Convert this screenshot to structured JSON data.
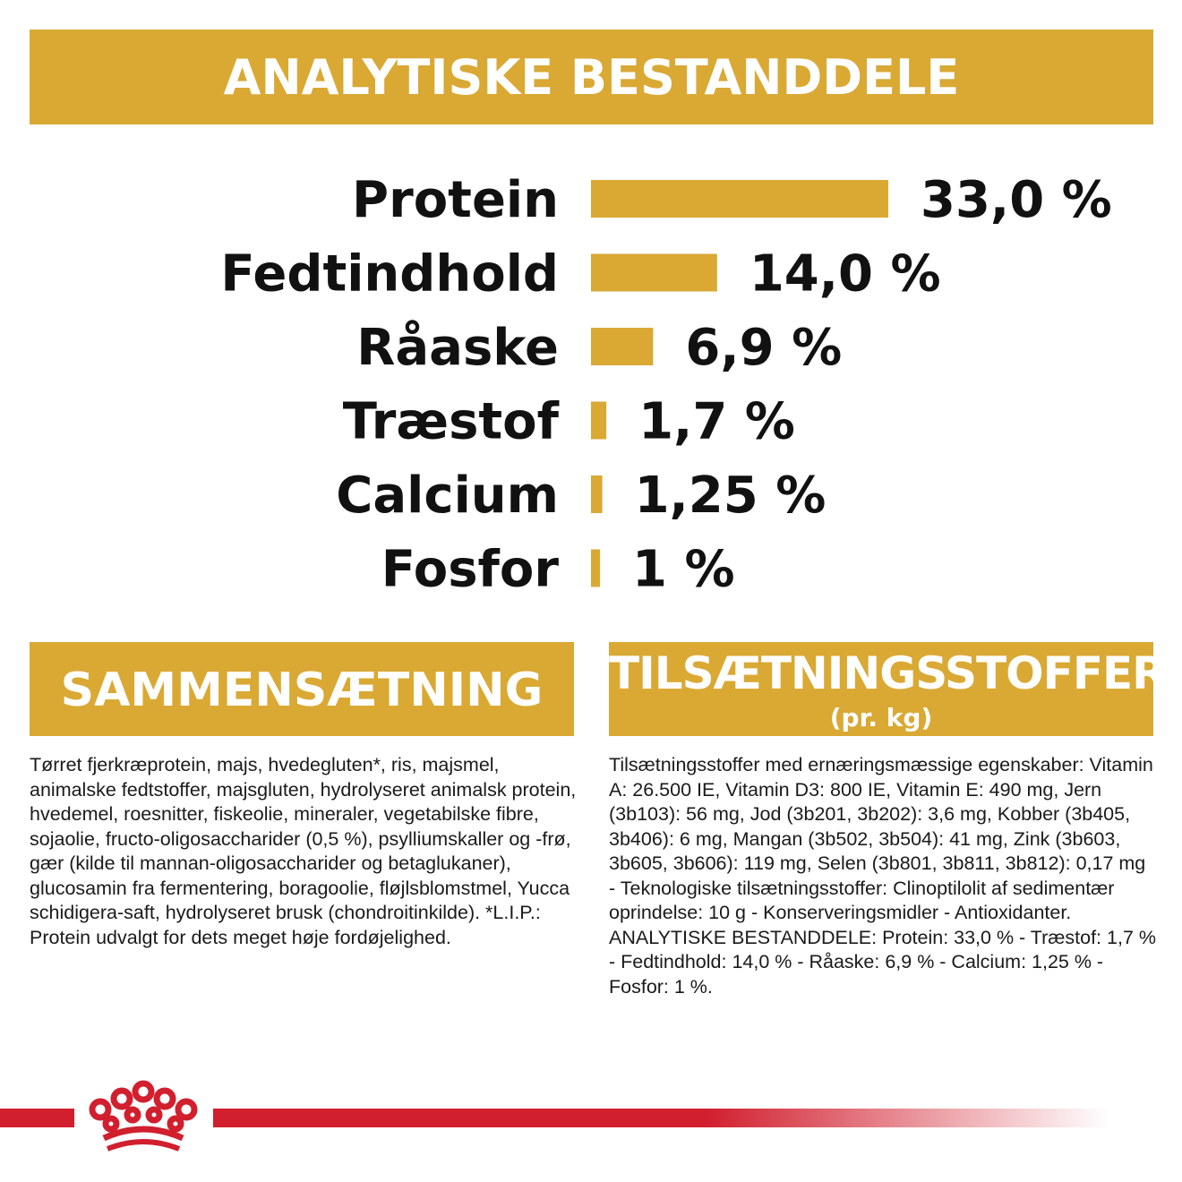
{
  "header": {
    "title": "ANALYTISKE BESTANDDELE"
  },
  "chart_data": {
    "type": "bar",
    "orientation": "horizontal",
    "categories": [
      "Protein",
      "Fedtindhold",
      "Råaske",
      "Træstof",
      "Calcium",
      "Fosfor"
    ],
    "values": [
      33.0,
      14.0,
      6.9,
      1.7,
      1.25,
      1
    ],
    "value_labels": [
      "33,0 %",
      "14,0 %",
      "6,9 %",
      "1,7 %",
      "1,25 %",
      "1 %"
    ],
    "unit": "%",
    "bar_color": "#d9a934",
    "grid": false,
    "legend": "none"
  },
  "composition": {
    "title": "SAMMENSÆTNING",
    "text": "Tørret fjerkræprotein, majs, hvedegluten*, ris, majsmel, animalske fedtstoffer, majsgluten, hydrolyseret animalsk protein, hvedemel, roesnitter, fiskeolie, mineraler, vegetabilske fibre, sojaolie, fructo-oligosaccharider (0,5 %), psylliumskaller og -frø, gær (kilde til mannan-oligosaccharider og betaglukaner), glucosamin fra fermentering, boragoolie, fløjlsblomstmel, Yucca schidigera-saft, hydrolyseret brusk (chondroitinkilde). *L.I.P.: Protein udvalgt for dets meget høje fordøjelighed."
  },
  "additives": {
    "title": "TILSÆTNINGSSTOFFER",
    "subtitle": "(pr. kg)",
    "text": "Tilsætningsstoffer med ernæringsmæssige egenskaber: Vitamin A: 26.500 IE, Vitamin D3: 800 IE, Vitamin E: 490 mg, Jern (3b103): 56 mg, Jod (3b201, 3b202): 3,6 mg, Kobber (3b405, 3b406): 6 mg, Mangan (3b502, 3b504): 41 mg, Zink (3b603, 3b605, 3b606): 119 mg, Selen (3b801, 3b811, 3b812): 0,17 mg - Teknologiske tilsætningsstoffer: Clinoptilolit af sedimentær oprindelse: 10 g - Konserveringsmidler - Antioxidanter. ANALYTISKE BESTANDDELE: Protein: 33,0 % - Træstof: 1,7 % - Fedtindhold: 14,0 % - Råaske: 6,9 % - Calcium: 1,25 % - Fosfor: 1 %."
  },
  "colors": {
    "accent": "#d9a934",
    "brand_red": "#d11f2e"
  },
  "logo": {
    "icon": "crown-logo-icon"
  }
}
